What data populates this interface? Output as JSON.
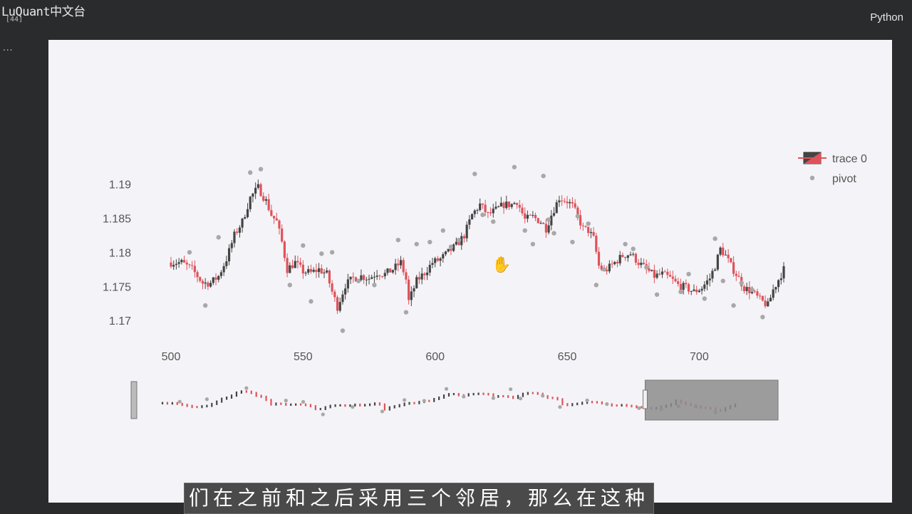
{
  "app": {
    "brand": "LuQuant中文台",
    "brand_sub": "[44]",
    "menu_dots": "...",
    "language": "Python"
  },
  "subtitle_text": "们在之前和之后采用三个邻居，那么在这种",
  "cursor_icon": "hand-pointer-icon",
  "colors": {
    "up": "#444444",
    "down": "#e0525a",
    "pivot": "#a8a8a8",
    "panel_bg": "#f4f4f8",
    "tick": "#555555",
    "selection": "#8c8c8c"
  },
  "chart_data": {
    "type": "candlestick",
    "legend": [
      {
        "name": "trace 0",
        "kind": "candle"
      },
      {
        "name": "pivot",
        "kind": "marker"
      }
    ],
    "legend_position": "top-right",
    "xlim": [
      500,
      732
    ],
    "ylim": [
      1.1673,
      1.1955
    ],
    "x_ticks": [
      500,
      550,
      600,
      650,
      700
    ],
    "y_ticks": [
      1.17,
      1.175,
      1.18,
      1.185,
      1.19
    ],
    "x_tick_labels": [
      "500",
      "550",
      "600",
      "650",
      "700"
    ],
    "y_tick_labels": [
      "1.17",
      "1.175",
      "1.18",
      "1.185",
      "1.19"
    ],
    "grid": false,
    "close_path": [
      [
        500,
        1.1785
      ],
      [
        504,
        1.1785
      ],
      [
        508,
        1.1775
      ],
      [
        512,
        1.1755
      ],
      [
        515,
        1.1755
      ],
      [
        518,
        1.1765
      ],
      [
        521,
        1.179
      ],
      [
        524,
        1.1825
      ],
      [
        527,
        1.1845
      ],
      [
        530,
        1.188
      ],
      [
        533,
        1.1895
      ],
      [
        536,
        1.1875
      ],
      [
        538,
        1.1855
      ],
      [
        540,
        1.1845
      ],
      [
        542,
        1.1815
      ],
      [
        544,
        1.1775
      ],
      [
        547,
        1.1785
      ],
      [
        550,
        1.1772
      ],
      [
        553,
        1.177
      ],
      [
        556,
        1.1775
      ],
      [
        559,
        1.1768
      ],
      [
        561,
        1.1742
      ],
      [
        563,
        1.172
      ],
      [
        566,
        1.1752
      ],
      [
        569,
        1.1762
      ],
      [
        572,
        1.1765
      ],
      [
        575,
        1.1762
      ],
      [
        578,
        1.177
      ],
      [
        581,
        1.1768
      ],
      [
        584,
        1.1775
      ],
      [
        587,
        1.1785
      ],
      [
        589,
        1.176
      ],
      [
        590,
        1.1728
      ],
      [
        593,
        1.1758
      ],
      [
        596,
        1.177
      ],
      [
        599,
        1.1785
      ],
      [
        602,
        1.179
      ],
      [
        605,
        1.18
      ],
      [
        608,
        1.181
      ],
      [
        611,
        1.1825
      ],
      [
        614,
        1.1855
      ],
      [
        617,
        1.187
      ],
      [
        620,
        1.1855
      ],
      [
        623,
        1.1862
      ],
      [
        626,
        1.187
      ],
      [
        629,
        1.187
      ],
      [
        631,
        1.1875
      ],
      [
        634,
        1.1848
      ],
      [
        637,
        1.1852
      ],
      [
        640,
        1.1845
      ],
      [
        642,
        1.1835
      ],
      [
        644,
        1.1855
      ],
      [
        647,
        1.188
      ],
      [
        650,
        1.1875
      ],
      [
        652,
        1.1868
      ],
      [
        654,
        1.1852
      ],
      [
        656,
        1.1835
      ],
      [
        658,
        1.1832
      ],
      [
        660,
        1.182
      ],
      [
        662,
        1.178
      ],
      [
        664,
        1.1772
      ],
      [
        666,
        1.1778
      ],
      [
        668,
        1.1785
      ],
      [
        671,
        1.1795
      ],
      [
        674,
        1.1798
      ],
      [
        677,
        1.1785
      ],
      [
        680,
        1.1775
      ],
      [
        683,
        1.1765
      ],
      [
        686,
        1.1768
      ],
      [
        689,
        1.1762
      ],
      [
        692,
        1.1752
      ],
      [
        695,
        1.1748
      ],
      [
        698,
        1.1742
      ],
      [
        701,
        1.1748
      ],
      [
        704,
        1.1762
      ],
      [
        706,
        1.178
      ],
      [
        708,
        1.1805
      ],
      [
        710,
        1.1795
      ],
      [
        712,
        1.178
      ],
      [
        714,
        1.1768
      ],
      [
        717,
        1.1748
      ],
      [
        720,
        1.1742
      ],
      [
        723,
        1.173
      ],
      [
        726,
        1.1722
      ],
      [
        728,
        1.1745
      ],
      [
        730,
        1.176
      ],
      [
        732,
        1.1775
      ]
    ],
    "candle_step": 1,
    "pivots": [
      {
        "x": 507,
        "y": 1.18
      },
      {
        "x": 513,
        "y": 1.1722
      },
      {
        "x": 518,
        "y": 1.1822
      },
      {
        "x": 530,
        "y": 1.1917
      },
      {
        "x": 534,
        "y": 1.1922
      },
      {
        "x": 545,
        "y": 1.1752
      },
      {
        "x": 550,
        "y": 1.181
      },
      {
        "x": 553,
        "y": 1.1728
      },
      {
        "x": 557,
        "y": 1.1798
      },
      {
        "x": 561,
        "y": 1.18
      },
      {
        "x": 565,
        "y": 1.1685
      },
      {
        "x": 571,
        "y": 1.1758
      },
      {
        "x": 577,
        "y": 1.1752
      },
      {
        "x": 586,
        "y": 1.1818
      },
      {
        "x": 589,
        "y": 1.1712
      },
      {
        "x": 593,
        "y": 1.1812
      },
      {
        "x": 598,
        "y": 1.1815
      },
      {
        "x": 603,
        "y": 1.1832
      },
      {
        "x": 606,
        "y": 1.1808
      },
      {
        "x": 609,
        "y": 1.1818
      },
      {
        "x": 615,
        "y": 1.1915
      },
      {
        "x": 618,
        "y": 1.1855
      },
      {
        "x": 622,
        "y": 1.1845
      },
      {
        "x": 630,
        "y": 1.1925
      },
      {
        "x": 634,
        "y": 1.1832
      },
      {
        "x": 637,
        "y": 1.1812
      },
      {
        "x": 641,
        "y": 1.1912
      },
      {
        "x": 643,
        "y": 1.1848
      },
      {
        "x": 645,
        "y": 1.1828
      },
      {
        "x": 652,
        "y": 1.1815
      },
      {
        "x": 654,
        "y": 1.1853
      },
      {
        "x": 658,
        "y": 1.1842
      },
      {
        "x": 661,
        "y": 1.1752
      },
      {
        "x": 664,
        "y": 1.1775
      },
      {
        "x": 672,
        "y": 1.1812
      },
      {
        "x": 675,
        "y": 1.1805
      },
      {
        "x": 680,
        "y": 1.1778
      },
      {
        "x": 684,
        "y": 1.1738
      },
      {
        "x": 693,
        "y": 1.1742
      },
      {
        "x": 696,
        "y": 1.1768
      },
      {
        "x": 702,
        "y": 1.1732
      },
      {
        "x": 706,
        "y": 1.182
      },
      {
        "x": 709,
        "y": 1.1758
      },
      {
        "x": 713,
        "y": 1.1722
      },
      {
        "x": 716,
        "y": 1.1755
      },
      {
        "x": 720,
        "y": 1.1745
      },
      {
        "x": 724,
        "y": 1.1705
      }
    ],
    "range_slider": {
      "xlim": [
        420,
        735
      ],
      "selected_range": [
        670,
        735
      ]
    }
  }
}
